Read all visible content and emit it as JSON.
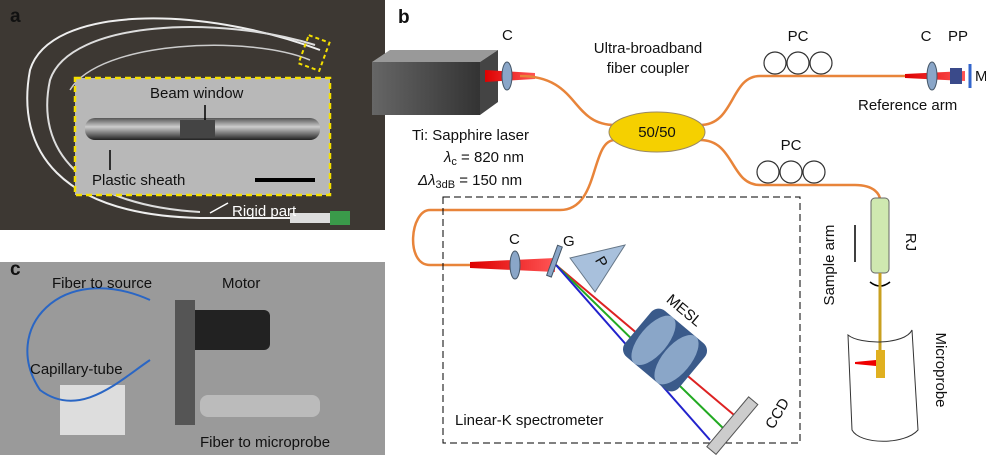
{
  "panel_a": {
    "label": "a",
    "beam_window": "Beam window",
    "plastic_sheath": "Plastic sheath",
    "rigid_part": "Rigid part"
  },
  "panel_b": {
    "label": "b",
    "laser": {
      "name": "Ti: Sapphire laser",
      "center": {
        "symbol": "λ",
        "sub": "c",
        "rest": " = 820 nm"
      },
      "bandwidth": {
        "symbol": "Δλ",
        "sub": "3dB",
        "rest": " = 150 nm"
      }
    },
    "coupler": {
      "line1": "Ultra-broadband",
      "line2": "fiber coupler",
      "ratio": "50/50"
    },
    "source_collimator": "C",
    "reference_arm": {
      "pc": "PC",
      "collimator": "C",
      "polarizer": "PP",
      "mirror": "M",
      "label": "Reference arm"
    },
    "sample_arm": {
      "pc": "PC",
      "label": "Sample arm",
      "rotary_joint": "RJ",
      "probe": "Microprobe"
    },
    "spectrometer": {
      "collimator": "C",
      "grating": "G",
      "prism": "P",
      "lens": "MESL",
      "camera": "CCD",
      "label": "Linear-K spectrometer"
    }
  },
  "panel_c": {
    "label": "c",
    "fiber_to_source": "Fiber to source",
    "motor": "Motor",
    "capillary_tube": "Capillary-tube",
    "fiber_to_microprobe": "Fiber to microprobe"
  }
}
